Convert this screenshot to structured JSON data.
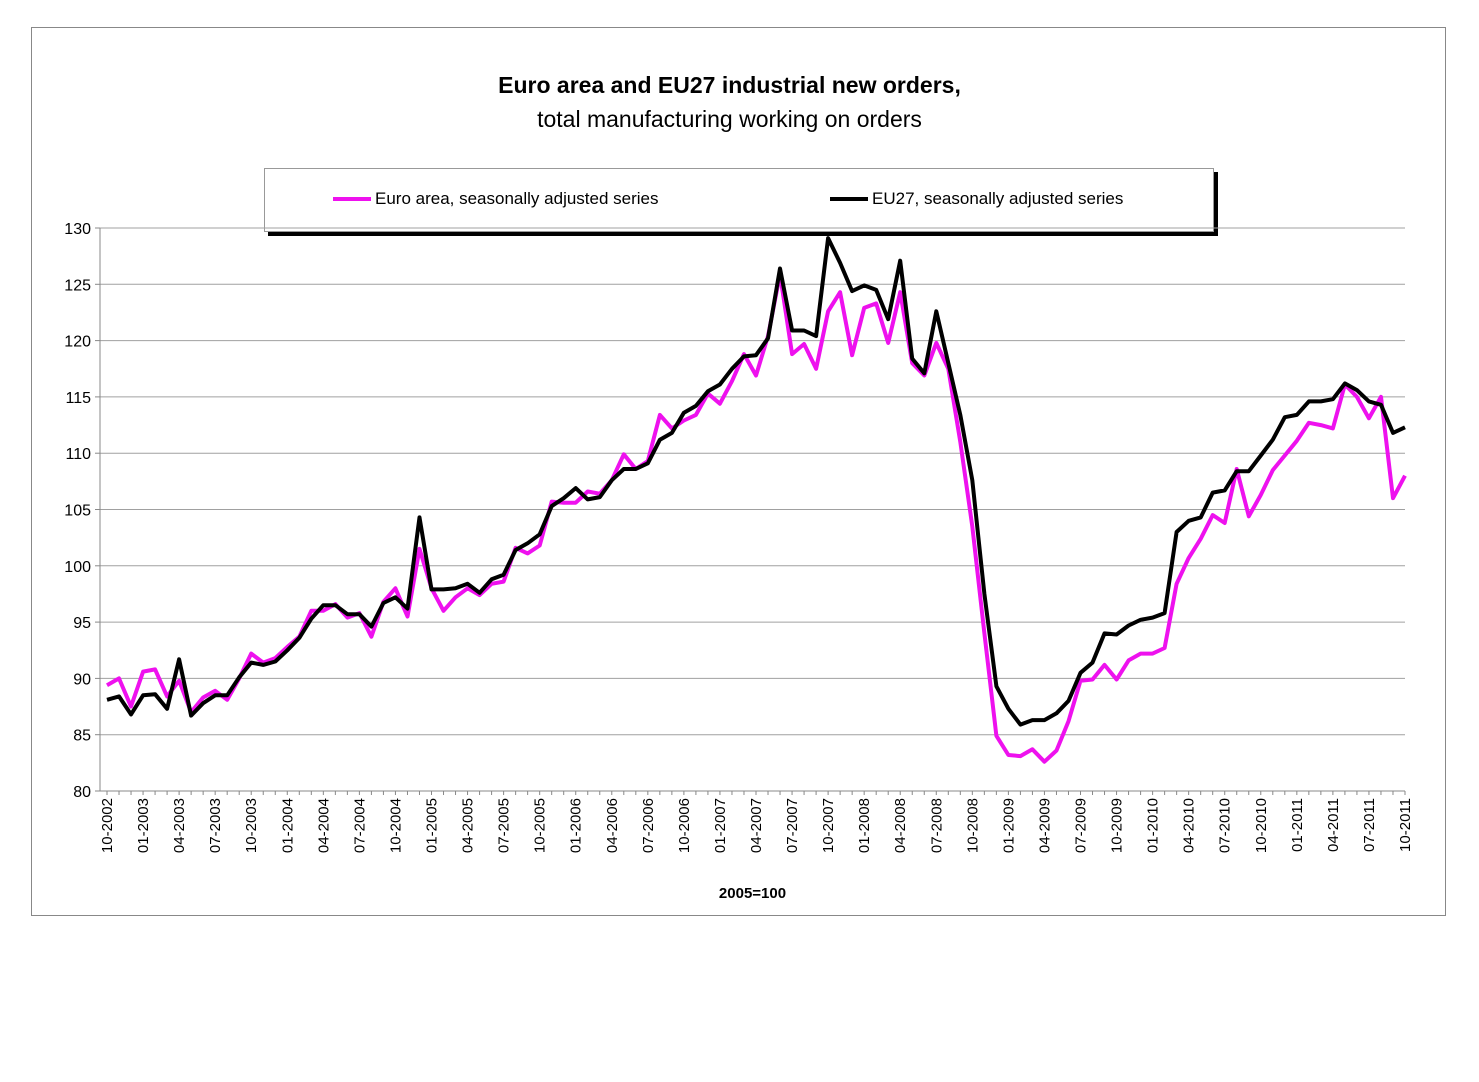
{
  "chart_data": {
    "type": "line",
    "title": "Euro area and EU27 industrial new orders,",
    "subtitle": "total manufacturing working on orders",
    "xlabel": "2005=100",
    "ylabel": "",
    "ylim": [
      80,
      130
    ],
    "yticks": [
      80,
      85,
      90,
      95,
      100,
      105,
      110,
      115,
      120,
      125,
      130
    ],
    "grid": true,
    "legend_position": "top",
    "categories": [
      "10-2002",
      "11-2002",
      "12-2002",
      "01-2003",
      "02-2003",
      "03-2003",
      "04-2003",
      "05-2003",
      "06-2003",
      "07-2003",
      "08-2003",
      "09-2003",
      "10-2003",
      "11-2003",
      "12-2003",
      "01-2004",
      "02-2004",
      "03-2004",
      "04-2004",
      "05-2004",
      "06-2004",
      "07-2004",
      "08-2004",
      "09-2004",
      "10-2004",
      "11-2004",
      "12-2004",
      "01-2005",
      "02-2005",
      "03-2005",
      "04-2005",
      "05-2005",
      "06-2005",
      "07-2005",
      "08-2005",
      "09-2005",
      "10-2005",
      "11-2005",
      "12-2005",
      "01-2006",
      "02-2006",
      "03-2006",
      "04-2006",
      "05-2006",
      "06-2006",
      "07-2006",
      "08-2006",
      "09-2006",
      "10-2006",
      "11-2006",
      "12-2006",
      "01-2007",
      "02-2007",
      "03-2007",
      "04-2007",
      "05-2007",
      "06-2007",
      "07-2007",
      "08-2007",
      "09-2007",
      "10-2007",
      "11-2007",
      "12-2007",
      "01-2008",
      "02-2008",
      "03-2008",
      "04-2008",
      "05-2008",
      "06-2008",
      "07-2008",
      "08-2008",
      "09-2008",
      "10-2008",
      "11-2008",
      "12-2008",
      "01-2009",
      "02-2009",
      "03-2009",
      "04-2009",
      "05-2009",
      "06-2009",
      "07-2009",
      "08-2009",
      "09-2009",
      "10-2009",
      "11-2009",
      "12-2009",
      "01-2010",
      "02-2010",
      "03-2010",
      "04-2010",
      "05-2010",
      "06-2010",
      "07-2010",
      "08-2010",
      "09-2010",
      "10-2010",
      "11-2010",
      "12-2010",
      "01-2011",
      "02-2011",
      "03-2011",
      "04-2011",
      "05-2011",
      "06-2011",
      "07-2011",
      "08-2011",
      "09-2011",
      "10-2011"
    ],
    "series": [
      {
        "name": "Euro area, seasonally adjusted series",
        "color": "#ee11ee",
        "values": [
          89.4,
          90.0,
          87.5,
          90.6,
          90.8,
          88.4,
          89.8,
          87.0,
          88.3,
          88.9,
          88.1,
          90.0,
          92.2,
          91.4,
          91.8,
          92.8,
          93.7,
          96.0,
          96.0,
          96.6,
          95.4,
          95.8,
          93.7,
          96.8,
          98.0,
          95.5,
          101.5,
          98.0,
          96.0,
          97.2,
          98.0,
          97.4,
          98.4,
          98.6,
          101.6,
          101.1,
          101.8,
          105.7,
          105.6,
          105.6,
          106.6,
          106.4,
          107.6,
          109.9,
          108.6,
          109.3,
          113.4,
          112.2,
          112.9,
          113.4,
          115.3,
          114.4,
          116.4,
          118.8,
          116.9,
          120.4,
          125.9,
          118.8,
          119.7,
          117.5,
          122.6,
          124.3,
          118.7,
          122.9,
          123.3,
          119.8,
          124.3,
          118.0,
          116.9,
          119.8,
          117.5,
          111.0,
          103.5,
          94.0,
          84.9,
          83.2,
          83.1,
          83.7,
          82.6,
          83.6,
          86.2,
          89.8,
          89.9,
          91.2,
          89.9,
          91.6,
          92.2,
          92.2,
          92.7,
          98.4,
          100.7,
          102.4,
          104.5,
          103.8,
          108.6,
          104.4,
          106.3,
          108.5,
          109.8,
          111.1,
          112.7,
          112.5,
          112.2,
          116.1,
          115.0,
          113.1,
          115.0,
          106.0,
          108.0
        ]
      },
      {
        "name": "EU27, seasonally adjusted series",
        "color": "#000000",
        "values": [
          88.1,
          88.4,
          86.8,
          88.5,
          88.6,
          87.3,
          91.7,
          86.7,
          87.8,
          88.5,
          88.5,
          90.1,
          91.4,
          91.2,
          91.5,
          92.5,
          93.6,
          95.3,
          96.5,
          96.5,
          95.7,
          95.7,
          94.6,
          96.7,
          97.2,
          96.2,
          104.3,
          97.9,
          97.9,
          98.0,
          98.4,
          97.6,
          98.8,
          99.2,
          101.4,
          102.0,
          102.8,
          105.3,
          106.0,
          106.9,
          105.9,
          106.1,
          107.6,
          108.6,
          108.6,
          109.1,
          111.2,
          111.8,
          113.6,
          114.2,
          115.5,
          116.1,
          117.5,
          118.6,
          118.7,
          120.2,
          126.4,
          120.9,
          120.9,
          120.4,
          129.1,
          126.9,
          124.4,
          124.9,
          124.5,
          121.9,
          127.1,
          118.4,
          117.1,
          122.6,
          118.0,
          113.4,
          107.6,
          97.5,
          89.3,
          87.3,
          85.9,
          86.3,
          86.3,
          86.9,
          88.0,
          90.5,
          91.4,
          94.0,
          93.9,
          94.7,
          95.2,
          95.4,
          95.8,
          103.0,
          104.0,
          104.3,
          106.5,
          106.7,
          108.4,
          108.4,
          109.8,
          111.2,
          113.2,
          113.4,
          114.6,
          114.6,
          114.8,
          116.2,
          115.6,
          114.6,
          114.3,
          111.8,
          112.3
        ]
      }
    ]
  }
}
